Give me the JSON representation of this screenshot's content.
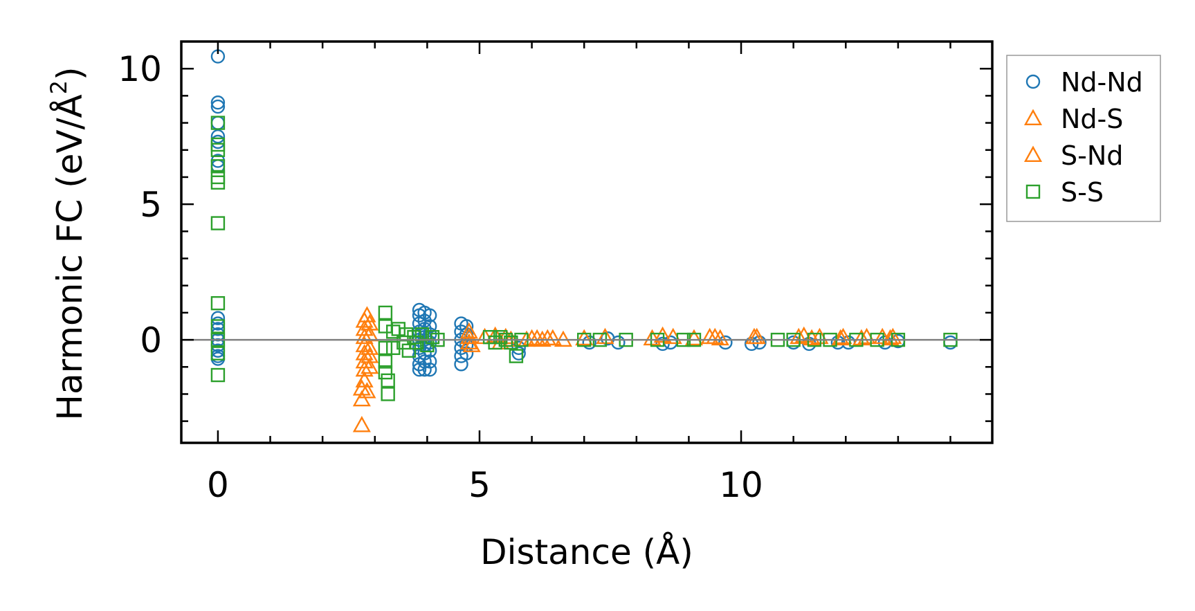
{
  "chart_data": {
    "type": "scatter",
    "title": "",
    "xlabel": "Distance (Å)",
    "ylabel": "Harmonic FC (eV/Å",
    "ylabel_sup": "2",
    "ylabel_end": ")",
    "xlim": [
      -0.7,
      14.8
    ],
    "ylim": [
      -3.8,
      11.0
    ],
    "x_ticks": [
      0,
      5,
      10
    ],
    "x_tick_labels": [
      "0",
      "5",
      "10"
    ],
    "y_ticks": [
      0,
      5,
      10
    ],
    "y_tick_labels": [
      "0",
      "5",
      "10"
    ],
    "x_minor_step": 1,
    "y_minor_step": 1,
    "zero_line": true,
    "grid": false,
    "legend_position": "outside-right-top",
    "series": [
      {
        "name": "Nd-Nd",
        "marker": "circle",
        "color": "#1f77b4",
        "points": [
          [
            0,
            10.45
          ],
          [
            0,
            8.75
          ],
          [
            0,
            8.6
          ],
          [
            0,
            8.0
          ],
          [
            0,
            7.5
          ],
          [
            0,
            7.3
          ],
          [
            0,
            6.6
          ],
          [
            0,
            6.4
          ],
          [
            0,
            0.8
          ],
          [
            0,
            0.6
          ],
          [
            0,
            0.4
          ],
          [
            0,
            0.2
          ],
          [
            0,
            0.0
          ],
          [
            0,
            -0.2
          ],
          [
            0,
            -0.4
          ],
          [
            0,
            -0.6
          ],
          [
            0,
            -0.7
          ],
          [
            3.85,
            1.1
          ],
          [
            3.85,
            0.9
          ],
          [
            3.85,
            0.6
          ],
          [
            3.85,
            0.3
          ],
          [
            3.85,
            0.0
          ],
          [
            3.85,
            -0.3
          ],
          [
            3.85,
            -0.6
          ],
          [
            3.85,
            -0.9
          ],
          [
            3.85,
            -1.1
          ],
          [
            3.95,
            1.0
          ],
          [
            3.95,
            0.7
          ],
          [
            3.95,
            0.4
          ],
          [
            3.95,
            0.1
          ],
          [
            3.95,
            -0.2
          ],
          [
            3.95,
            -0.5
          ],
          [
            3.95,
            -0.8
          ],
          [
            3.95,
            -1.1
          ],
          [
            4.05,
            0.9
          ],
          [
            4.05,
            0.5
          ],
          [
            4.05,
            0.2
          ],
          [
            4.05,
            -0.1
          ],
          [
            4.05,
            -0.4
          ],
          [
            4.05,
            -0.8
          ],
          [
            4.05,
            -1.1
          ],
          [
            4.65,
            0.6
          ],
          [
            4.65,
            0.3
          ],
          [
            4.65,
            0.0
          ],
          [
            4.65,
            -0.3
          ],
          [
            4.65,
            -0.6
          ],
          [
            4.65,
            -0.9
          ],
          [
            4.75,
            0.5
          ],
          [
            4.75,
            0.2
          ],
          [
            4.75,
            -0.2
          ],
          [
            4.75,
            -0.5
          ],
          [
            5.75,
            -0.5
          ],
          [
            5.75,
            -0.3
          ],
          [
            7.1,
            -0.1
          ],
          [
            7.45,
            0.05
          ],
          [
            7.65,
            -0.1
          ],
          [
            8.5,
            -0.15
          ],
          [
            8.65,
            -0.1
          ],
          [
            9.7,
            -0.1
          ],
          [
            10.2,
            -0.15
          ],
          [
            10.35,
            -0.1
          ],
          [
            11.0,
            -0.1
          ],
          [
            11.3,
            -0.15
          ],
          [
            11.85,
            -0.1
          ],
          [
            12.05,
            -0.1
          ],
          [
            12.75,
            -0.1
          ],
          [
            13.0,
            -0.05
          ],
          [
            14.0,
            -0.1
          ]
        ]
      },
      {
        "name": "Nd-S",
        "marker": "triangle",
        "color": "#ff7f0e",
        "points": [
          [
            2.75,
            -3.15
          ],
          [
            2.75,
            -2.2
          ],
          [
            2.75,
            -1.8
          ],
          [
            2.8,
            -1.5
          ],
          [
            2.8,
            -1.1
          ],
          [
            2.8,
            -0.8
          ],
          [
            2.8,
            -0.5
          ],
          [
            2.8,
            -0.2
          ],
          [
            2.8,
            0.1
          ],
          [
            2.8,
            0.4
          ],
          [
            2.8,
            0.7
          ],
          [
            2.85,
            0.9
          ],
          [
            2.85,
            -1.9
          ],
          [
            4.8,
            0.3
          ],
          [
            4.8,
            0.1
          ],
          [
            4.8,
            -0.1
          ],
          [
            4.85,
            -0.2
          ],
          [
            5.1,
            0.1
          ],
          [
            5.6,
            0.0
          ],
          [
            6.1,
            0.05
          ],
          [
            6.3,
            0.05
          ],
          [
            6.6,
            0.0
          ],
          [
            8.5,
            0.15
          ],
          [
            9.1,
            0.05
          ],
          [
            9.4,
            0.1
          ],
          [
            9.5,
            0.1
          ],
          [
            10.3,
            0.1
          ],
          [
            11.2,
            0.15
          ],
          [
            11.5,
            0.1
          ],
          [
            11.95,
            0.1
          ],
          [
            12.4,
            0.1
          ],
          [
            12.7,
            0.1
          ],
          [
            12.9,
            0.1
          ]
        ]
      },
      {
        "name": "S-Nd",
        "marker": "triangle",
        "color": "#ff7f0e",
        "points": [
          [
            2.9,
            0.6
          ],
          [
            2.9,
            0.2
          ],
          [
            2.9,
            -0.3
          ],
          [
            2.9,
            -0.6
          ],
          [
            2.9,
            -1.0
          ],
          [
            5.3,
            0.15
          ],
          [
            5.4,
            -0.1
          ],
          [
            5.5,
            0.1
          ],
          [
            5.9,
            0.0
          ],
          [
            6.0,
            0.05
          ],
          [
            6.2,
            0.0
          ],
          [
            6.4,
            0.05
          ],
          [
            7.0,
            0.05
          ],
          [
            7.4,
            0.1
          ],
          [
            8.3,
            0.05
          ],
          [
            8.7,
            0.1
          ],
          [
            9.6,
            0.05
          ],
          [
            10.25,
            0.1
          ],
          [
            11.1,
            0.1
          ],
          [
            11.35,
            0.05
          ],
          [
            11.9,
            0.05
          ],
          [
            12.3,
            0.05
          ],
          [
            12.85,
            0.05
          ]
        ]
      },
      {
        "name": "S-S",
        "marker": "square",
        "color": "#2ca02c",
        "points": [
          [
            0,
            8.0
          ],
          [
            0,
            7.2
          ],
          [
            0,
            7.0
          ],
          [
            0,
            6.4
          ],
          [
            0,
            6.0
          ],
          [
            0,
            5.8
          ],
          [
            0,
            4.3
          ],
          [
            0,
            1.35
          ],
          [
            0,
            0.5
          ],
          [
            0,
            0.0
          ],
          [
            0,
            -0.5
          ],
          [
            0,
            -1.3
          ],
          [
            3.2,
            1.0
          ],
          [
            3.2,
            0.5
          ],
          [
            3.2,
            -0.3
          ],
          [
            3.2,
            -0.8
          ],
          [
            3.2,
            -1.2
          ],
          [
            3.25,
            -1.5
          ],
          [
            3.25,
            -2.0
          ],
          [
            3.35,
            0.3
          ],
          [
            3.35,
            -0.3
          ],
          [
            3.45,
            0.4
          ],
          [
            3.55,
            -0.1
          ],
          [
            3.6,
            0.2
          ],
          [
            3.65,
            -0.4
          ],
          [
            3.75,
            0.1
          ],
          [
            3.8,
            -0.1
          ],
          [
            3.9,
            0.2
          ],
          [
            4.0,
            -0.2
          ],
          [
            4.1,
            0.1
          ],
          [
            4.2,
            0.0
          ],
          [
            5.2,
            0.1
          ],
          [
            5.3,
            -0.1
          ],
          [
            5.4,
            0.1
          ],
          [
            5.5,
            0.0
          ],
          [
            5.6,
            -0.1
          ],
          [
            5.7,
            -0.6
          ],
          [
            5.8,
            0.0
          ],
          [
            7.0,
            0.0
          ],
          [
            7.3,
            0.0
          ],
          [
            7.8,
            0.0
          ],
          [
            8.4,
            0.0
          ],
          [
            8.9,
            0.0
          ],
          [
            9.1,
            0.0
          ],
          [
            10.7,
            0.0
          ],
          [
            11.0,
            0.0
          ],
          [
            11.4,
            0.0
          ],
          [
            11.7,
            0.0
          ],
          [
            12.2,
            0.0
          ],
          [
            12.6,
            0.0
          ],
          [
            13.0,
            0.0
          ],
          [
            14.0,
            0.0
          ]
        ]
      }
    ]
  }
}
